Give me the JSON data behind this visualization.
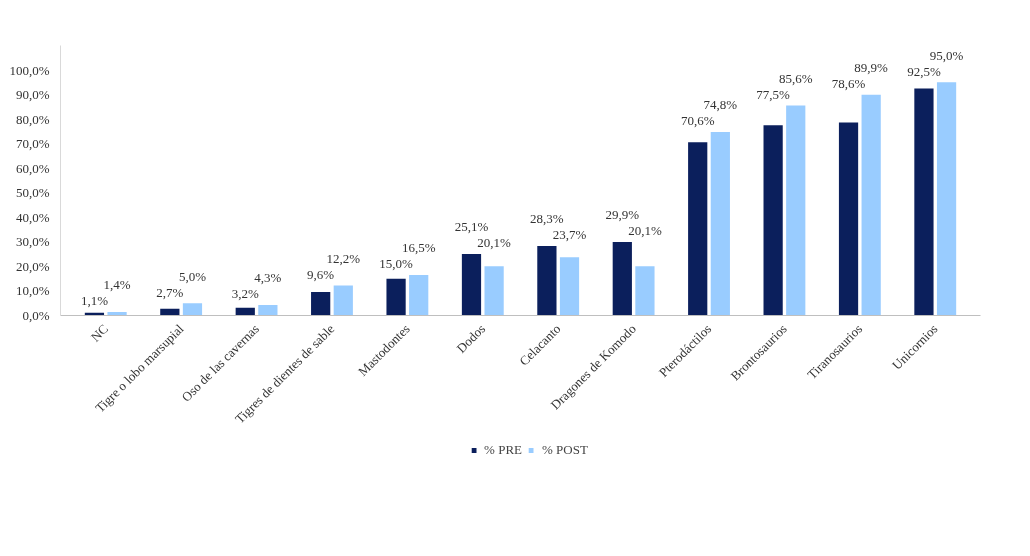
{
  "chart_data": {
    "type": "bar",
    "categories": [
      "NC",
      "Tigre o lobo marsupial",
      "Oso de las cavernas",
      "Tigres de dientes de sable",
      "Mastodontes",
      "Dodos",
      "Celacanto",
      "Dragones de Komodo",
      "Pterodáctilos",
      "Brontosaurios",
      "Tiranosaurios",
      "Unicornios"
    ],
    "series": [
      {
        "name": "% PRE",
        "color": "#0b1f5c",
        "values": [
          1.1,
          2.7,
          3.2,
          9.6,
          15.0,
          25.1,
          28.3,
          29.9,
          70.6,
          77.5,
          78.6,
          92.5
        ],
        "value_labels": [
          "1,1%",
          "2,7%",
          "3,2%",
          "9,6%",
          "15,0%",
          "25,1%",
          "28,3%",
          "29,9%",
          "70,6%",
          "77,5%",
          "78,6%",
          "92,5%"
        ]
      },
      {
        "name": "% POST",
        "color": "#99ccff",
        "values": [
          1.4,
          5.0,
          4.3,
          12.2,
          16.5,
          20.1,
          23.7,
          20.1,
          74.8,
          85.6,
          89.9,
          95.0
        ],
        "value_labels": [
          "1,4%",
          "5,0%",
          "4,3%",
          "12,2%",
          "16,5%",
          "20,1%",
          "23,7%",
          "20,1%",
          "74,8%",
          "85,6%",
          "89,9%",
          "95,0%"
        ]
      }
    ],
    "ylim": [
      0,
      110
    ],
    "yticks": [
      {
        "value": 0,
        "label": "0,0%"
      },
      {
        "value": 10,
        "label": "10,0%"
      },
      {
        "value": 20,
        "label": "20,0%"
      },
      {
        "value": 30,
        "label": "30,0%"
      },
      {
        "value": 40,
        "label": "40,0%"
      },
      {
        "value": 50,
        "label": "50,0%"
      },
      {
        "value": 60,
        "label": "60,0%"
      },
      {
        "value": 70,
        "label": "70,0%"
      },
      {
        "value": 80,
        "label": "80,0%"
      },
      {
        "value": 90,
        "label": "90,0%"
      },
      {
        "value": 100,
        "label": "100,0%"
      }
    ],
    "grid": false,
    "legend": "bottom"
  }
}
